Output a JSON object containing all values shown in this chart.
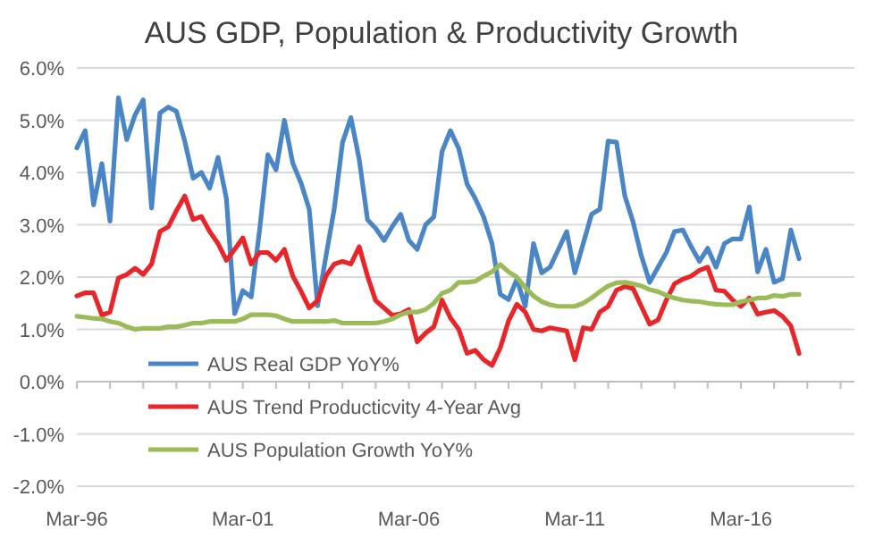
{
  "chart_data": {
    "type": "line",
    "title": "AUS GDP, Population & Productivity Growth",
    "x": [
      "1996-03",
      "1996-06",
      "1996-09",
      "1996-12",
      "1997-03",
      "1997-06",
      "1997-09",
      "1997-12",
      "1998-03",
      "1998-06",
      "1998-09",
      "1998-12",
      "1999-03",
      "1999-06",
      "1999-09",
      "1999-12",
      "2000-03",
      "2000-06",
      "2000-09",
      "2000-12",
      "2001-03",
      "2001-06",
      "2001-09",
      "2001-12",
      "2002-03",
      "2002-06",
      "2002-09",
      "2002-12",
      "2003-03",
      "2003-06",
      "2003-09",
      "2003-12",
      "2004-03",
      "2004-06",
      "2004-09",
      "2004-12",
      "2005-03",
      "2005-06",
      "2005-09",
      "2005-12",
      "2006-03",
      "2006-06",
      "2006-09",
      "2006-12",
      "2007-03",
      "2007-06",
      "2007-09",
      "2007-12",
      "2008-03",
      "2008-06",
      "2008-09",
      "2008-12",
      "2009-03",
      "2009-06",
      "2009-09",
      "2009-12",
      "2010-03",
      "2010-06",
      "2010-09",
      "2010-12",
      "2011-03",
      "2011-06",
      "2011-09",
      "2011-12",
      "2012-03",
      "2012-06",
      "2012-09",
      "2012-12",
      "2013-03",
      "2013-06",
      "2013-09",
      "2013-12",
      "2014-03",
      "2014-06",
      "2014-09",
      "2014-12",
      "2015-03",
      "2015-06",
      "2015-09",
      "2015-12",
      "2016-03",
      "2016-06",
      "2016-09",
      "2016-12",
      "2017-03",
      "2017-06",
      "2017-09",
      "2017-12"
    ],
    "series": [
      {
        "name": "AUS Real GDP YoY%",
        "color": "#4a86c5",
        "values": [
          4.47,
          4.8,
          3.38,
          4.17,
          3.07,
          5.43,
          4.63,
          5.1,
          5.39,
          3.32,
          5.14,
          5.25,
          5.17,
          4.6,
          3.89,
          4.0,
          3.7,
          4.29,
          3.5,
          1.3,
          1.74,
          1.62,
          2.9,
          4.34,
          4.05,
          5.0,
          4.18,
          3.8,
          3.3,
          1.45,
          2.4,
          3.3,
          4.57,
          5.05,
          4.25,
          3.1,
          2.93,
          2.7,
          2.97,
          3.2,
          2.7,
          2.53,
          3.0,
          3.15,
          4.4,
          4.8,
          4.46,
          3.78,
          3.5,
          3.15,
          2.64,
          1.67,
          1.57,
          1.96,
          1.44,
          2.64,
          2.08,
          2.19,
          2.53,
          2.87,
          2.08,
          2.64,
          3.2,
          3.3,
          4.6,
          4.58,
          3.55,
          3.05,
          2.41,
          1.9,
          2.19,
          2.47,
          2.87,
          2.9,
          2.58,
          2.3,
          2.55,
          2.19,
          2.64,
          2.73,
          2.73,
          3.34,
          2.1,
          2.53,
          1.9,
          1.97,
          2.9,
          2.35
        ]
      },
      {
        "name": "AUS Trend Producticvity 4-Year Avg",
        "color": "#e8262a",
        "values": [
          1.64,
          1.7,
          1.7,
          1.27,
          1.33,
          1.98,
          2.05,
          2.17,
          2.05,
          2.25,
          2.87,
          2.96,
          3.27,
          3.55,
          3.1,
          3.16,
          2.87,
          2.64,
          2.32,
          2.53,
          2.75,
          2.25,
          2.47,
          2.47,
          2.32,
          2.53,
          2.02,
          1.73,
          1.41,
          1.55,
          2.02,
          2.25,
          2.3,
          2.25,
          2.58,
          2.02,
          1.55,
          1.41,
          1.27,
          1.3,
          1.38,
          0.76,
          0.93,
          1.05,
          1.56,
          1.22,
          1.0,
          0.54,
          0.6,
          0.42,
          0.31,
          0.65,
          1.16,
          1.48,
          1.33,
          1.0,
          0.97,
          1.03,
          1.0,
          0.97,
          0.42,
          1.03,
          1.0,
          1.33,
          1.44,
          1.75,
          1.82,
          1.78,
          1.44,
          1.1,
          1.18,
          1.56,
          1.87,
          1.96,
          2.02,
          2.13,
          2.19,
          1.75,
          1.73,
          1.56,
          1.44,
          1.6,
          1.29,
          1.33,
          1.36,
          1.25,
          1.07,
          0.54
        ]
      },
      {
        "name": "AUS Population Growth YoY%",
        "color": "#9bbb59",
        "values": [
          1.25,
          1.23,
          1.21,
          1.2,
          1.15,
          1.12,
          1.05,
          1.0,
          1.02,
          1.02,
          1.02,
          1.05,
          1.05,
          1.08,
          1.12,
          1.12,
          1.15,
          1.15,
          1.15,
          1.15,
          1.2,
          1.28,
          1.28,
          1.28,
          1.26,
          1.2,
          1.15,
          1.15,
          1.15,
          1.15,
          1.15,
          1.17,
          1.12,
          1.12,
          1.12,
          1.12,
          1.12,
          1.15,
          1.2,
          1.28,
          1.33,
          1.33,
          1.38,
          1.5,
          1.69,
          1.75,
          1.9,
          1.9,
          1.92,
          2.02,
          2.1,
          2.24,
          2.1,
          2.0,
          1.8,
          1.64,
          1.53,
          1.47,
          1.44,
          1.44,
          1.44,
          1.5,
          1.6,
          1.72,
          1.83,
          1.89,
          1.9,
          1.87,
          1.83,
          1.76,
          1.72,
          1.65,
          1.6,
          1.56,
          1.54,
          1.53,
          1.5,
          1.48,
          1.47,
          1.47,
          1.53,
          1.56,
          1.6,
          1.6,
          1.65,
          1.63,
          1.67,
          1.67
        ]
      }
    ],
    "xlim": [
      "1996-03",
      "2019-08"
    ],
    "xticks": [
      {
        "value": "1996-03",
        "label": "Mar-96"
      },
      {
        "value": "1997-03",
        "label": null
      },
      {
        "value": "1998-03",
        "label": null
      },
      {
        "value": "1999-03",
        "label": null
      },
      {
        "value": "2000-03",
        "label": null
      },
      {
        "value": "2001-03",
        "label": "Mar-01"
      },
      {
        "value": "2002-03",
        "label": null
      },
      {
        "value": "2003-03",
        "label": null
      },
      {
        "value": "2004-03",
        "label": null
      },
      {
        "value": "2005-03",
        "label": null
      },
      {
        "value": "2006-03",
        "label": "Mar-06"
      },
      {
        "value": "2007-03",
        "label": null
      },
      {
        "value": "2008-03",
        "label": null
      },
      {
        "value": "2009-03",
        "label": null
      },
      {
        "value": "2010-03",
        "label": null
      },
      {
        "value": "2011-03",
        "label": "Mar-11"
      },
      {
        "value": "2012-03",
        "label": null
      },
      {
        "value": "2013-03",
        "label": null
      },
      {
        "value": "2014-03",
        "label": null
      },
      {
        "value": "2015-03",
        "label": null
      },
      {
        "value": "2016-03",
        "label": "Mar-16"
      },
      {
        "value": "2017-03",
        "label": null
      },
      {
        "value": "2018-03",
        "label": null
      },
      {
        "value": "2019-03",
        "label": null
      }
    ],
    "ylim": [
      -2,
      6
    ],
    "yticks": [
      {
        "value": -2,
        "label": "-2.0%"
      },
      {
        "value": -1,
        "label": "-1.0%"
      },
      {
        "value": 0,
        "label": "0.0%"
      },
      {
        "value": 1,
        "label": "1.0%"
      },
      {
        "value": 2,
        "label": "2.0%"
      },
      {
        "value": 3,
        "label": "3.0%"
      },
      {
        "value": 4,
        "label": "4.0%"
      },
      {
        "value": 5,
        "label": "5.0%"
      },
      {
        "value": 6,
        "label": "6.0%"
      }
    ],
    "grid": "y",
    "legend": "bottom left",
    "marker": "none",
    "line_style": "solid"
  }
}
